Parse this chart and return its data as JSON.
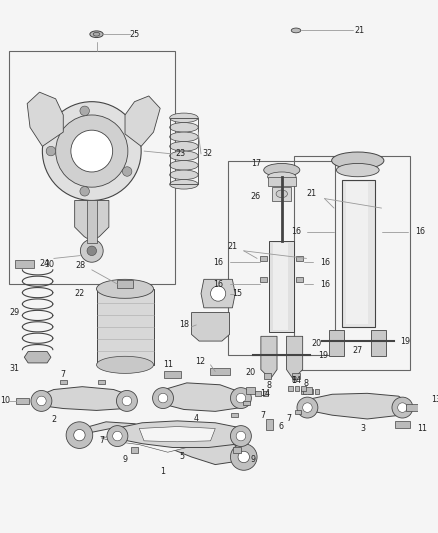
{
  "bg_color": "#f5f5f5",
  "line_color": "#444444",
  "text_color": "#222222",
  "fig_width": 4.38,
  "fig_height": 5.33,
  "dpi": 100,
  "gray_light": "#d8d8d8",
  "gray_mid": "#bbbbbb",
  "gray_dark": "#888888",
  "box_color": "#666666",
  "label_fs": 5.8
}
